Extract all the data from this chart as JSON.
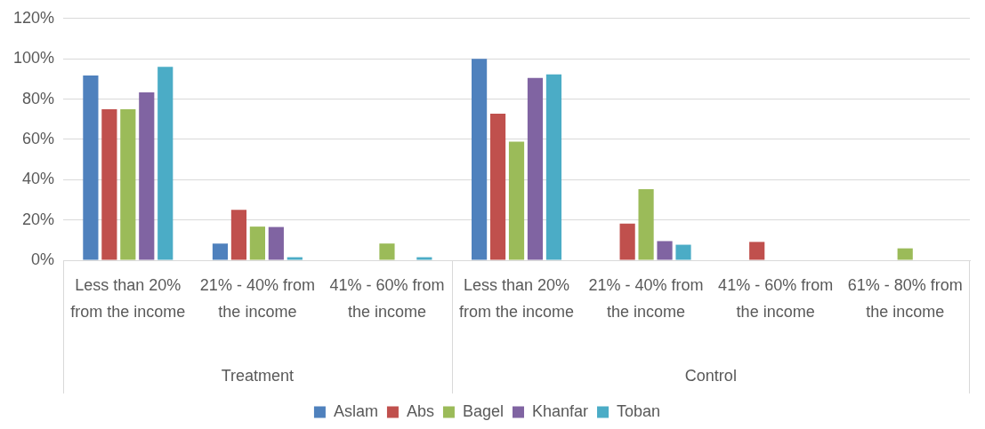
{
  "chart_data": {
    "type": "bar",
    "categories": [
      "Less than 20% from the income",
      "21% - 40% from the income",
      "41% - 60% from the income",
      "Less than 20% from the income",
      "21% - 40% from the income",
      "41% - 60% from the income",
      "61% - 80% from the income"
    ],
    "series": [
      {
        "name": "Aslam",
        "color": "#4f81bd",
        "values": [
          91.7,
          8.3,
          0,
          100,
          0,
          0,
          0
        ]
      },
      {
        "name": "Abs",
        "color": "#c0504d",
        "values": [
          75,
          25,
          0,
          72.7,
          18.2,
          9.1,
          0
        ]
      },
      {
        "name": "Bagel",
        "color": "#9bbb59",
        "values": [
          75,
          16.7,
          8.3,
          58.8,
          35.3,
          0,
          5.9
        ]
      },
      {
        "name": "Khanfar",
        "color": "#8064a2",
        "values": [
          83.3,
          16.5,
          0,
          90.5,
          9.5,
          0,
          0
        ]
      },
      {
        "name": "Toban",
        "color": "#4bacc6",
        "values": [
          96,
          1.5,
          1.5,
          92.3,
          7.7,
          0,
          0
        ]
      }
    ],
    "ylim": [
      0,
      120
    ],
    "yticks": [
      {
        "value": 0,
        "label": "0%"
      },
      {
        "value": 20,
        "label": "20%"
      },
      {
        "value": 40,
        "label": "40%"
      },
      {
        "value": 60,
        "label": "60%"
      },
      {
        "value": 80,
        "label": "80%"
      },
      {
        "value": 100,
        "label": "100%"
      },
      {
        "value": 120,
        "label": "120%"
      }
    ],
    "annotations": [
      "Treatment",
      "Control"
    ],
    "grid": "y",
    "legend": "bottom"
  }
}
